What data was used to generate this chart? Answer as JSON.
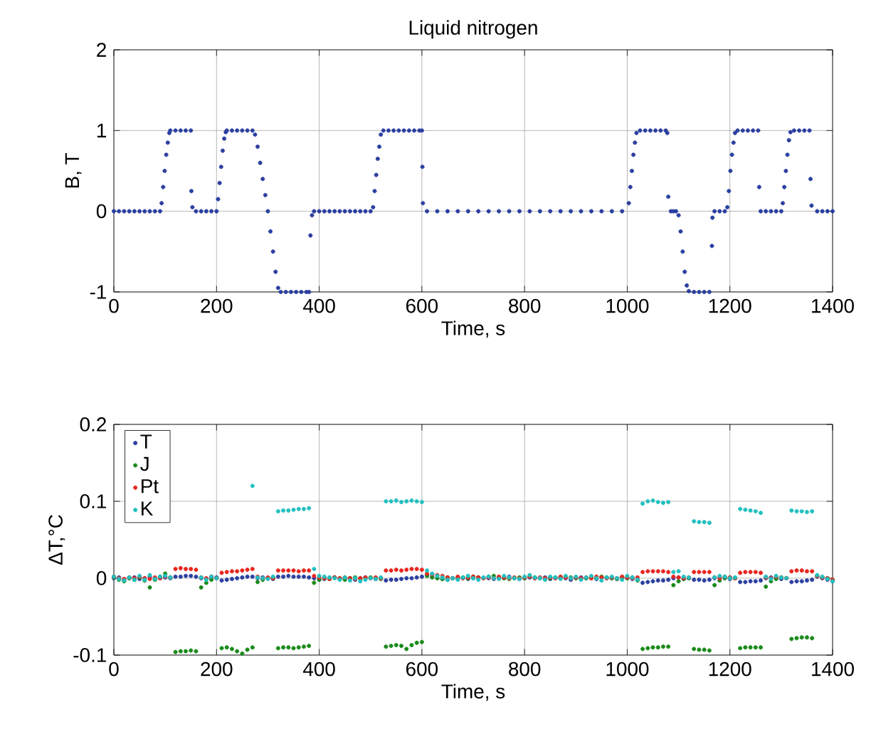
{
  "chart_data": [
    {
      "type": "scatter",
      "title": "Liquid nitrogen",
      "xlabel": "Time, s",
      "ylabel": "B, T",
      "xlim": [
        0,
        1400
      ],
      "xticks": [
        0,
        200,
        400,
        600,
        800,
        1000,
        1200,
        1400
      ],
      "ylim": [
        -1,
        2
      ],
      "yticks": [
        -1,
        0,
        1,
        2
      ],
      "grid": true,
      "marker": "circle",
      "x": [
        0,
        10,
        20,
        30,
        40,
        50,
        60,
        70,
        80,
        90,
        93,
        96,
        99,
        102,
        105,
        108,
        110,
        120,
        130,
        140,
        150,
        151,
        153,
        160,
        170,
        180,
        190,
        200,
        203,
        206,
        209,
        212,
        215,
        218,
        220,
        230,
        240,
        250,
        260,
        270,
        275,
        280,
        285,
        290,
        295,
        300,
        305,
        310,
        315,
        320,
        325,
        335,
        345,
        355,
        365,
        375,
        380,
        383,
        386,
        390,
        400,
        410,
        420,
        430,
        440,
        450,
        460,
        470,
        480,
        490,
        500,
        505,
        508,
        511,
        514,
        517,
        520,
        525,
        535,
        545,
        555,
        565,
        575,
        585,
        595,
        600,
        601,
        602,
        610,
        630,
        650,
        670,
        690,
        710,
        730,
        750,
        770,
        790,
        810,
        830,
        850,
        870,
        890,
        910,
        930,
        950,
        970,
        990,
        1003,
        1006,
        1009,
        1012,
        1015,
        1018,
        1025,
        1035,
        1045,
        1055,
        1065,
        1075,
        1078,
        1080,
        1085,
        1090,
        1095,
        1100,
        1104,
        1108,
        1112,
        1116,
        1120,
        1130,
        1140,
        1150,
        1160,
        1165,
        1166,
        1170,
        1180,
        1190,
        1195,
        1198,
        1201,
        1204,
        1207,
        1210,
        1215,
        1225,
        1235,
        1245,
        1255,
        1257,
        1260,
        1270,
        1280,
        1290,
        1300,
        1303,
        1306,
        1309,
        1312,
        1315,
        1318,
        1325,
        1335,
        1345,
        1355,
        1357,
        1359,
        1370,
        1380,
        1390,
        1400
      ],
      "series": [
        {
          "color": "#2b3fa0",
          "values": [
            0,
            0,
            0,
            0,
            0,
            0,
            0,
            0,
            0,
            0,
            0.1,
            0.3,
            0.5,
            0.7,
            0.85,
            0.97,
            1,
            1,
            1,
            1,
            1,
            0.25,
            0.05,
            0,
            0,
            0,
            0,
            0,
            0.15,
            0.35,
            0.55,
            0.75,
            0.9,
            0.98,
            1,
            1,
            1,
            1,
            1,
            1,
            0.95,
            0.8,
            0.6,
            0.4,
            0.2,
            0,
            -0.25,
            -0.5,
            -0.75,
            -0.95,
            -1,
            -1,
            -1,
            -1,
            -1,
            -1,
            -1,
            -0.3,
            -0.05,
            0,
            0,
            0,
            0,
            0,
            0,
            0,
            0,
            0,
            0,
            0,
            0,
            0.05,
            0.25,
            0.45,
            0.65,
            0.8,
            0.95,
            1,
            1,
            1,
            1,
            1,
            1,
            1,
            1,
            1,
            0.55,
            0.1,
            0,
            0,
            0,
            0,
            0,
            0,
            0,
            0,
            0,
            0,
            0,
            0,
            0,
            0,
            0,
            0,
            0,
            0,
            0,
            0,
            0.1,
            0.3,
            0.5,
            0.7,
            0.85,
            0.97,
            1,
            1,
            1,
            1,
            1,
            1,
            0.97,
            0.18,
            0,
            0,
            0,
            -0.05,
            -0.25,
            -0.5,
            -0.75,
            -0.92,
            -0.99,
            -1,
            -1,
            -1,
            -1,
            -0.43,
            -0.08,
            0,
            0,
            0,
            0.05,
            0.25,
            0.5,
            0.7,
            0.85,
            0.97,
            1,
            1,
            1,
            1,
            1,
            0.3,
            0,
            0,
            0,
            0,
            0,
            0.1,
            0.3,
            0.5,
            0.7,
            0.88,
            0.98,
            1,
            1,
            1,
            1,
            0.4,
            0.07,
            0,
            0,
            0,
            0
          ]
        }
      ]
    },
    {
      "type": "scatter",
      "xlabel": "Time, s",
      "ylabel": "ΔT,°C",
      "xlim": [
        0,
        1400
      ],
      "xticks": [
        0,
        200,
        400,
        600,
        800,
        1000,
        1200,
        1400
      ],
      "ylim": [
        -0.1,
        0.2
      ],
      "yticks": [
        -0.1,
        0,
        0.1,
        0.2
      ],
      "grid": true,
      "marker": "circle",
      "legend": "top left",
      "x": [
        0,
        10,
        20,
        30,
        40,
        50,
        60,
        70,
        80,
        90,
        100,
        110,
        120,
        130,
        140,
        150,
        160,
        170,
        180,
        190,
        200,
        210,
        220,
        230,
        240,
        250,
        260,
        270,
        280,
        290,
        300,
        310,
        320,
        330,
        340,
        350,
        360,
        370,
        380,
        390,
        400,
        410,
        420,
        430,
        440,
        450,
        460,
        470,
        480,
        490,
        500,
        510,
        520,
        530,
        540,
        550,
        560,
        570,
        580,
        590,
        600,
        610,
        620,
        630,
        640,
        650,
        660,
        670,
        680,
        690,
        700,
        710,
        720,
        730,
        740,
        750,
        760,
        770,
        780,
        790,
        800,
        810,
        820,
        830,
        840,
        850,
        860,
        870,
        880,
        890,
        900,
        910,
        920,
        930,
        940,
        950,
        960,
        970,
        980,
        990,
        1000,
        1010,
        1020,
        1030,
        1040,
        1050,
        1060,
        1070,
        1080,
        1090,
        1100,
        1110,
        1120,
        1130,
        1140,
        1150,
        1160,
        1170,
        1180,
        1190,
        1200,
        1210,
        1220,
        1230,
        1240,
        1250,
        1260,
        1270,
        1280,
        1290,
        1300,
        1310,
        1320,
        1330,
        1340,
        1350,
        1360,
        1370,
        1380,
        1390,
        1400
      ],
      "series": [
        {
          "name": "T",
          "color": "#2b3fa0",
          "values": [
            0,
            0.001,
            -0.002,
            0,
            0.001,
            -0.001,
            0,
            0.002,
            -0.001,
            0,
            0.001,
            0,
            0.002,
            0.002,
            0.003,
            0.003,
            0.002,
            0,
            -0.001,
            0,
            0.001,
            -0.003,
            -0.002,
            -0.001,
            0,
            0.001,
            0.002,
            0.002,
            0,
            0.001,
            0,
            -0.001,
            0.002,
            0.002,
            0.003,
            0.002,
            0.002,
            0.002,
            0.001,
            0,
            -0.002,
            -0.001,
            0,
            0.001,
            -0.001,
            0,
            0,
            -0.002,
            0,
            0.001,
            0,
            -0.001,
            0,
            -0.003,
            -0.002,
            -0.002,
            -0.001,
            0,
            0,
            0.001,
            0.002,
            0.004,
            0.002,
            0,
            -0.001,
            -0.002,
            0,
            0.001,
            0,
            -0.001,
            0,
            0.001,
            0,
            0,
            -0.001,
            0.001,
            0,
            0.002,
            0,
            -0.001,
            0,
            0.001,
            0,
            0,
            0.001,
            -0.001,
            0,
            0.001,
            0,
            -0.002,
            0,
            0.001,
            0,
            0,
            -0.001,
            0.001,
            0,
            0,
            -0.001,
            0.001,
            0,
            -0.001,
            -0.002,
            -0.006,
            -0.005,
            -0.004,
            -0.003,
            -0.003,
            -0.002,
            0,
            0.001,
            -0.001,
            0,
            -0.002,
            -0.002,
            -0.003,
            -0.002,
            0,
            0.001,
            0,
            -0.001,
            0,
            -0.005,
            -0.005,
            -0.004,
            -0.004,
            -0.003,
            0,
            0.001,
            0,
            -0.001,
            0,
            -0.005,
            -0.004,
            -0.004,
            -0.003,
            -0.002,
            0.002,
            0,
            -0.002,
            -0.004
          ]
        },
        {
          "name": "J",
          "color": "#1a8a1a",
          "values": [
            0.001,
            -0.002,
            -0.004,
            0,
            -0.002,
            0.001,
            -0.003,
            -0.012,
            -0.002,
            0.002,
            0.006,
            0.001,
            -0.096,
            -0.095,
            -0.095,
            -0.094,
            -0.095,
            -0.012,
            -0.006,
            -0.002,
            0,
            -0.091,
            -0.09,
            -0.092,
            -0.095,
            -0.098,
            -0.093,
            -0.09,
            -0.005,
            -0.002,
            0,
            0.001,
            -0.091,
            -0.09,
            -0.09,
            -0.091,
            -0.09,
            -0.089,
            -0.088,
            -0.006,
            -0.002,
            0,
            -0.001,
            0.001,
            0,
            -0.002,
            0,
            0.001,
            -0.001,
            0,
            0.001,
            0,
            -0.001,
            -0.089,
            -0.088,
            -0.087,
            -0.088,
            -0.092,
            -0.087,
            -0.084,
            -0.083,
            0.003,
            0.001,
            0,
            -0.001,
            0.001,
            0,
            -0.001,
            0.001,
            0,
            0.002,
            0.001,
            0,
            0.002,
            0.003,
            0.001,
            0,
            -0.001,
            0,
            0.001,
            0,
            0.002,
            0.001,
            0,
            -0.001,
            0,
            0.001,
            0,
            0.002,
            0.001,
            0,
            -0.001,
            0,
            0.001,
            0,
            0.002,
            0.001,
            0,
            -0.001,
            0.001,
            0,
            0.001,
            -0.003,
            -0.092,
            -0.091,
            -0.09,
            -0.09,
            -0.089,
            -0.089,
            -0.009,
            -0.004,
            -0.001,
            0,
            -0.092,
            -0.093,
            -0.093,
            -0.094,
            -0.009,
            -0.003,
            0,
            0.001,
            0,
            -0.091,
            -0.09,
            -0.09,
            -0.09,
            -0.09,
            -0.011,
            -0.004,
            -0.001,
            0.001,
            0,
            -0.079,
            -0.078,
            -0.077,
            -0.077,
            -0.078,
            0.003,
            0.001,
            0,
            -0.002
          ]
        },
        {
          "name": "Pt",
          "color": "#e8261e",
          "values": [
            0.002,
            0,
            -0.001,
            0.001,
            0,
            0.002,
            0,
            -0.001,
            0.001,
            0,
            0.002,
            0.001,
            0.012,
            0.013,
            0.012,
            0.012,
            0.011,
            0.001,
            0,
            0.002,
            0,
            0.007,
            0.008,
            0.009,
            0.009,
            0.01,
            0.011,
            0.012,
            0.002,
            0,
            0.001,
            0,
            0.01,
            0.01,
            0.01,
            0.01,
            0.009,
            0.01,
            0.01,
            0.003,
            0.001,
            0,
            -0.001,
            0.001,
            0,
            0.001,
            0,
            -0.001,
            0,
            0.001,
            0,
            0.001,
            0,
            0.01,
            0.01,
            0.011,
            0.01,
            0.011,
            0.012,
            0.012,
            0.011,
            0.006,
            0.005,
            0.004,
            0.003,
            0.001,
            0,
            0.002,
            0,
            0.001,
            0.002,
            0.001,
            0,
            0.001,
            0,
            0.002,
            0.001,
            0,
            0.001,
            0,
            0.001,
            0.002,
            0,
            0.001,
            0,
            0.001,
            0,
            0.002,
            0.001,
            0,
            0.001,
            0,
            0.001,
            0,
            0.002,
            0.001,
            0,
            0.001,
            0,
            0.002,
            0.001,
            0,
            0.001,
            0.008,
            0.009,
            0.009,
            0.009,
            0.009,
            0.008,
            0.002,
            0.001,
            0,
            0.001,
            0.008,
            0.008,
            0.008,
            0.008,
            0.001,
            0,
            0.002,
            0.001,
            0,
            0.007,
            0.008,
            0.008,
            0.008,
            0.007,
            0.001,
            0,
            0.002,
            0.001,
            0,
            0.009,
            0.01,
            0.01,
            0.009,
            0.009,
            0.003,
            0.001,
            0,
            -0.002
          ]
        },
        {
          "name": "K",
          "color": "#22c0c0",
          "values": [
            0.002,
            -0.001,
            -0.003,
            0.001,
            -0.002,
            0.003,
            -0.002,
            0.004,
            -0.001,
            0.002,
            0.003,
            0.001,
            null,
            null,
            null,
            null,
            null,
            0.001,
            -0.002,
            0.002,
            0,
            null,
            null,
            null,
            null,
            null,
            null,
            0.12,
            0.001,
            0,
            -0.001,
            0.002,
            0.087,
            0.088,
            0.088,
            0.089,
            0.09,
            0.09,
            0.091,
            0.012,
            0.003,
            0.002,
            0.001,
            0,
            -0.002,
            0.001,
            -0.003,
            0,
            -0.004,
            -0.002,
            0,
            -0.001,
            0.001,
            0.1,
            0.1,
            0.101,
            0.099,
            0.1,
            0.101,
            0.1,
            0.099,
            0.01,
            0.006,
            0.003,
            0.001,
            -0.002,
            0,
            -0.002,
            0.001,
            0.003,
            0,
            -0.002,
            0.001,
            0.002,
            0,
            -0.001,
            0.003,
            0.001,
            0,
            -0.001,
            0.002,
            0.004,
            0.001,
            0,
            -0.002,
            0.002,
            0.001,
            -0.001,
            0.003,
            0,
            0.002,
            -0.002,
            0.001,
            0.003,
            0,
            -0.003,
            0.001,
            0.002,
            0,
            -0.002,
            0.003,
            0.001,
            -0.002,
            0.097,
            0.1,
            0.101,
            0.099,
            0.098,
            0.099,
            0.008,
            0.009,
            0.002,
            0.001,
            0.074,
            0.073,
            0.073,
            0.072,
            0.001,
            0.003,
            0.002,
            0,
            0.001,
            0.09,
            0.089,
            0.088,
            0.087,
            0.085,
            0.002,
            -0.001,
            0.003,
            0.001,
            0,
            0.088,
            0.087,
            0.087,
            0.086,
            0.087,
            0.004,
            0.002,
            -0.001,
            -0.004
          ]
        }
      ]
    }
  ]
}
